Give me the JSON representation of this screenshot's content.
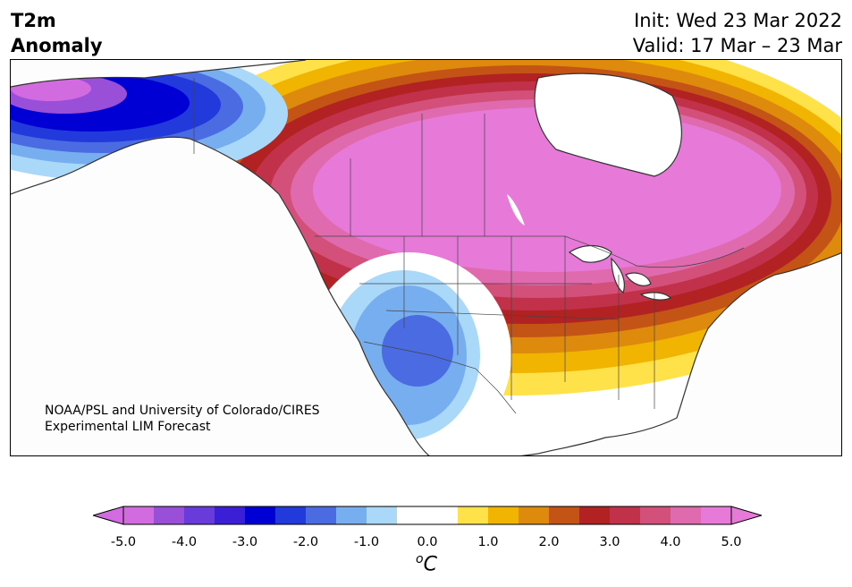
{
  "header": {
    "title_line1": "T2m",
    "title_line2": "Anomaly",
    "init_text": "Init: Wed 23 Mar 2022",
    "valid_text": "Valid: 17 Mar – 23 Mar"
  },
  "map": {
    "credit_line1": "NOAA/PSL and University of Colorado/CIRES",
    "credit_line2": "Experimental LIM Forecast",
    "region": "North America",
    "variable": "2-m temperature anomaly"
  },
  "colorbar": {
    "unit_base": "C",
    "unit_super": "o",
    "min": -5.0,
    "max": 5.0,
    "ticks": [
      "-5.0",
      "-4.0",
      "-3.0",
      "-2.0",
      "-1.0",
      "0.0",
      "1.0",
      "2.0",
      "3.0",
      "4.0",
      "5.0"
    ],
    "colors": [
      "#d36be0",
      "#9a4fd8",
      "#6a3bdb",
      "#3b1fd6",
      "#0000d4",
      "#2239dc",
      "#4b6be3",
      "#77aef0",
      "#aad8f8",
      "#ffffff",
      "#ffffff",
      "#ffe14a",
      "#f1b400",
      "#de8a0c",
      "#c45316",
      "#b22222",
      "#c2314a",
      "#d3507a",
      "#df6aad",
      "#e77ad9"
    ],
    "under_color": "#d36be0",
    "over_color": "#e77ad9"
  },
  "colors": {
    "cold_deep": "#0000d4",
    "warm_peak": "#e77ad9",
    "coastline": "#333333"
  }
}
